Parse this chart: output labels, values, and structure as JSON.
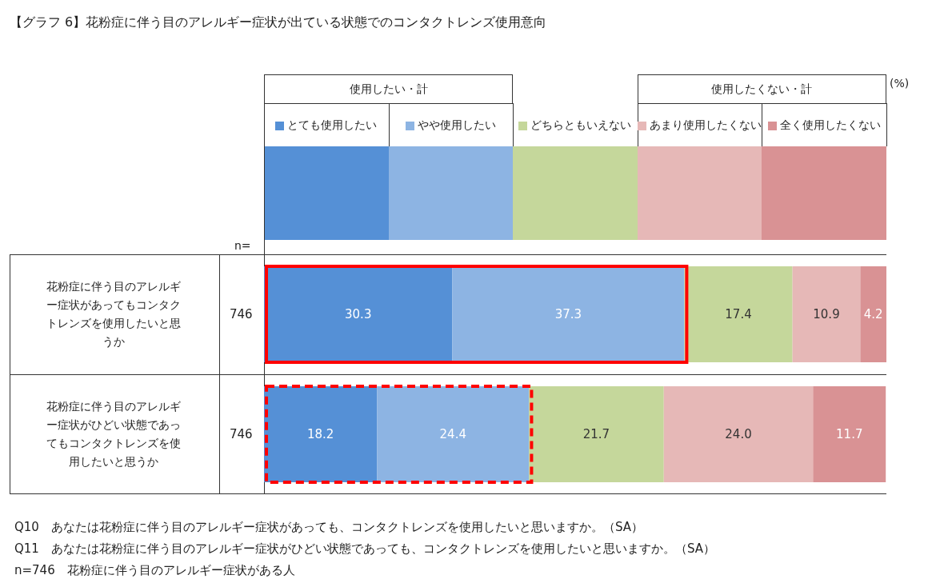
{
  "chart_data": {
    "type": "bar",
    "orientation": "horizontal",
    "stacked": true,
    "legend": "top",
    "title": "【グラフ 6】花粉症に伴う目のアレルギー症状が出ている状態でのコンタクトレンズ使用意向",
    "categories": [
      "花粉症に伴う目のアレルギー症状があってもコンタクトレンズを使用したいと思うか",
      "花粉症に伴う目のアレルギー症状がひどい状態であってもコンタクトレンズを使用したいと思うか"
    ],
    "series": [
      {
        "name": "とても使用したい",
        "color": "#5590d6",
        "values": [
          30.3,
          18.2
        ],
        "value_labels": [
          "30.3",
          "18.2"
        ]
      },
      {
        "name": "やや使用したい",
        "color": "#8db4e3",
        "values": [
          37.3,
          24.4
        ],
        "value_labels": [
          "37.3",
          "24.4"
        ]
      },
      {
        "name": "どちらともいえない",
        "color": "#c5d79b",
        "values": [
          17.4,
          21.7
        ],
        "value_labels": [
          "17.4",
          "21.7"
        ]
      },
      {
        "name": "あまり使用したくない",
        "color": "#e6b8b7",
        "values": [
          10.9,
          24.0
        ],
        "value_labels": [
          "10.9",
          "24.0"
        ]
      },
      {
        "name": "全く使用したくない",
        "color": "#d99294",
        "values": [
          4.2,
          11.7
        ],
        "value_labels": [
          "4.2",
          "11.7"
        ]
      }
    ],
    "annotations": [
      "使用したい・計",
      "使用したくない・計",
      "(%)",
      "n=",
      "746",
      "746",
      "Q10　あなたは花粉症に伴う目のアレルギー症状があっても、コンタクトレンズを使用したいと思いますか。（SA）",
      "Q11　あなたは花粉症に伴う目のアレルギー症状がひどい状態であっても、コンタクトレンズを使用したいと思いますか。（SA）",
      "n=746　花粉症に伴う目のアレルギー症状がある人"
    ]
  }
}
